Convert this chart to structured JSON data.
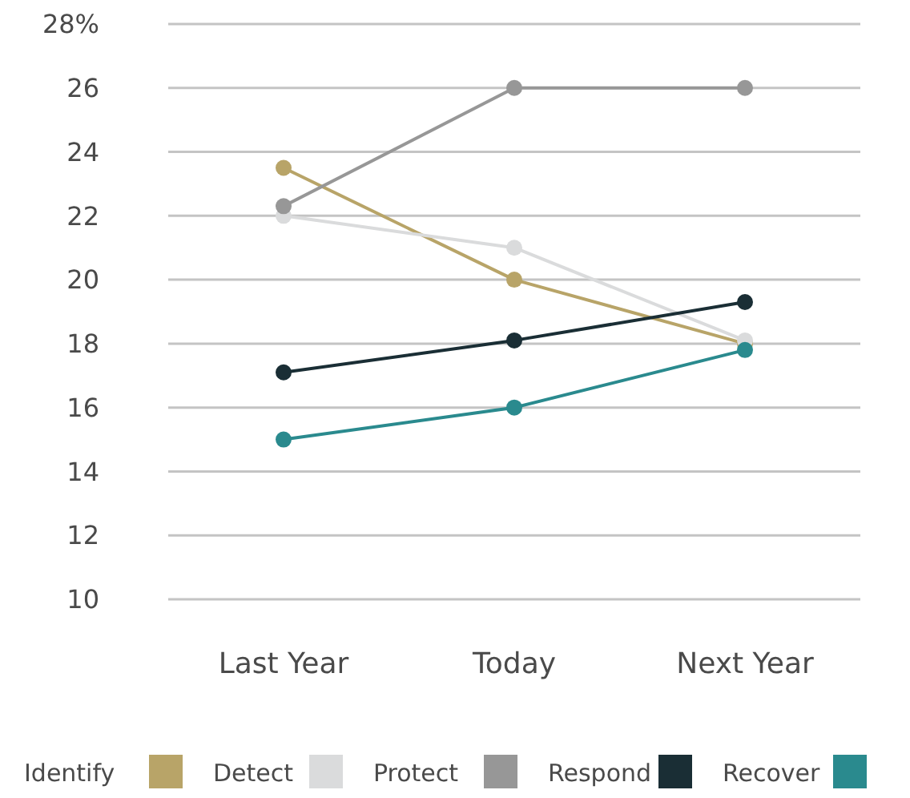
{
  "chart_data": {
    "type": "line",
    "categories": [
      "Last Year",
      "Today",
      "Next Year"
    ],
    "series": [
      {
        "name": "Identify",
        "color": "#b8a468",
        "values": [
          23.5,
          20,
          18
        ]
      },
      {
        "name": "Detect",
        "color": "#dadbdc",
        "values": [
          22,
          21,
          18.1
        ]
      },
      {
        "name": "Protect",
        "color": "#979797",
        "values": [
          22.3,
          26,
          26
        ]
      },
      {
        "name": "Respond",
        "color": "#1a2e35",
        "values": [
          17.1,
          18.1,
          19.3
        ]
      },
      {
        "name": "Recover",
        "color": "#2a8a8e",
        "values": [
          15,
          16,
          17.8
        ]
      }
    ],
    "ylim": [
      10,
      28
    ],
    "yticks": [
      10,
      12,
      14,
      16,
      18,
      20,
      22,
      24,
      26,
      {
        "value": 28,
        "label": "28%"
      }
    ],
    "grid": "y",
    "legend": "bottom",
    "marker": "circle",
    "line_style": "solid"
  }
}
